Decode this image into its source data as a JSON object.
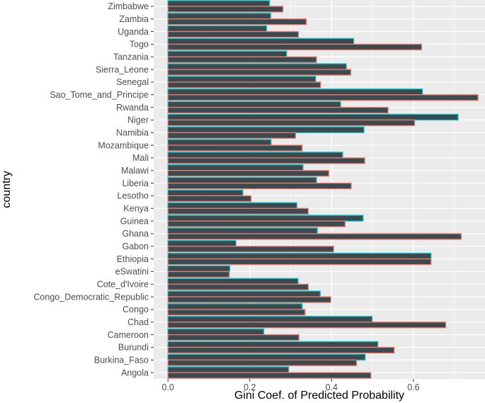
{
  "chart_data": {
    "type": "bar",
    "orientation": "horizontal",
    "title": "",
    "xlabel": "Gini Coef. of Predicted Probability",
    "ylabel": "country",
    "xlim": [
      -0.035,
      0.775
    ],
    "xticks": [
      0.0,
      0.2,
      0.4,
      0.6
    ],
    "xtick_labels": [
      "0.0",
      "0.2",
      "0.4",
      "0.6"
    ],
    "grid": true,
    "legend": "none",
    "categories": [
      "Zimbabwe",
      "Zambia",
      "Uganda",
      "Togo",
      "Tanzania",
      "Sierra_Leone",
      "Senegal",
      "Sao_Tome_and_Principe",
      "Rwanda",
      "Niger",
      "Namibia",
      "Mozambique",
      "Mali",
      "Malawi",
      "Liberia",
      "Lesotho",
      "Kenya",
      "Guinea",
      "Ghana",
      "Gabon",
      "Ethiopia",
      "eSwatini",
      "Cote_d'Ivoire",
      "Congo_Democratic_Republic",
      "Congo",
      "Chad",
      "Cameroon",
      "Burundi",
      "Burkina_Faso",
      "Angola"
    ],
    "series": [
      {
        "name": "series-teal",
        "outline_color": "#00BFC4",
        "fill_color": "#3b4a4f",
        "values": [
          0.248,
          0.251,
          0.241,
          0.454,
          0.29,
          0.436,
          0.361,
          0.622,
          0.422,
          0.709,
          0.479,
          0.252,
          0.427,
          0.33,
          0.363,
          0.183,
          0.315,
          0.477,
          0.365,
          0.166,
          0.643,
          0.151,
          0.318,
          0.372,
          0.328,
          0.499,
          0.234,
          0.513,
          0.482,
          0.295
        ]
      },
      {
        "name": "series-red",
        "outline_color": "#F8766D",
        "fill_color": "#3b4a4f",
        "values": [
          0.281,
          0.338,
          0.319,
          0.62,
          0.363,
          0.447,
          0.373,
          0.758,
          0.538,
          0.603,
          0.312,
          0.328,
          0.481,
          0.393,
          0.448,
          0.203,
          0.343,
          0.433,
          0.717,
          0.405,
          0.643,
          0.15,
          0.343,
          0.398,
          0.335,
          0.679,
          0.32,
          0.553,
          0.461,
          0.496
        ]
      }
    ]
  }
}
